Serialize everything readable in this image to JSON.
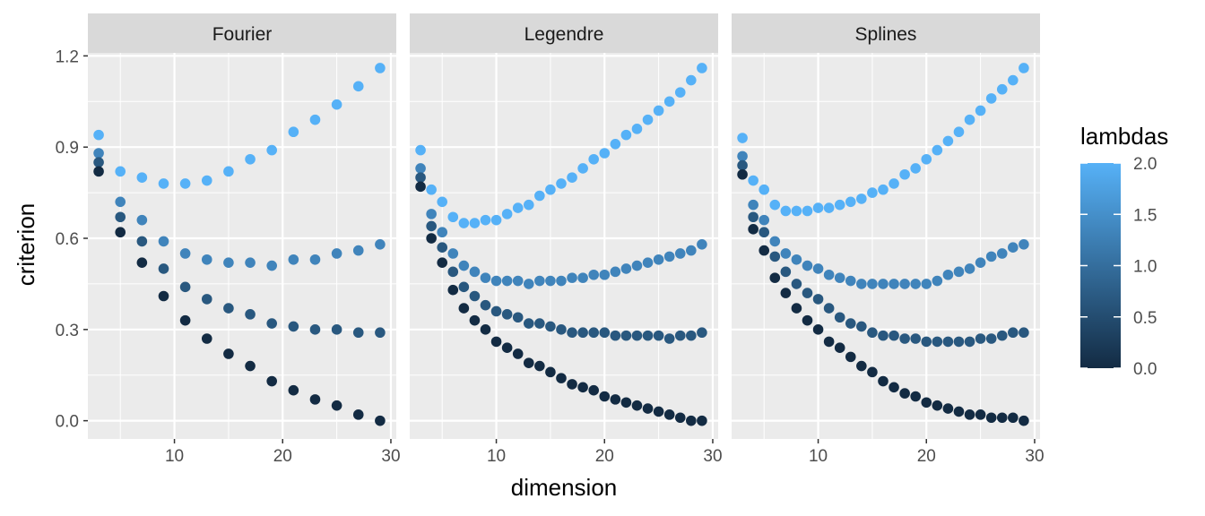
{
  "chart_data": {
    "type": "scatter",
    "facets": [
      "Fourier",
      "Legendre",
      "Splines"
    ],
    "xlabel": "dimension",
    "ylabel": "criterion",
    "xlim": [
      2,
      30.5
    ],
    "ylim": [
      -0.06,
      1.21
    ],
    "x_ticks": [
      10,
      20,
      30
    ],
    "y_ticks": [
      0.0,
      0.3,
      0.6,
      0.9,
      1.2
    ],
    "y_tick_labels": [
      "0.0",
      "0.3",
      "0.6",
      "0.9",
      "1.2"
    ],
    "grid": true,
    "color": {
      "title": "lambdas",
      "low_color": "#132B43",
      "high_color": "#56B1F7",
      "range": [
        0,
        2
      ],
      "ticks": [
        0.0,
        0.5,
        1.0,
        1.5,
        2.0
      ],
      "tick_labels": [
        "0.0",
        "0.5",
        "1.0",
        "1.5",
        "2.0"
      ],
      "legend_position": "right"
    },
    "panels": [
      {
        "facet": "Fourier",
        "series": [
          {
            "lambda": 2.0,
            "x": [
              3,
              5,
              7,
              9,
              11,
              13,
              15,
              17,
              19,
              21,
              23,
              25,
              27,
              29
            ],
            "y": [
              0.94,
              0.82,
              0.8,
              0.78,
              0.78,
              0.79,
              0.82,
              0.86,
              0.89,
              0.95,
              0.99,
              1.04,
              1.1,
              1.16
            ]
          },
          {
            "lambda": 1.33,
            "x": [
              3,
              5,
              7,
              9,
              11,
              13,
              15,
              17,
              19,
              21,
              23,
              25,
              27,
              29
            ],
            "y": [
              0.88,
              0.72,
              0.66,
              0.59,
              0.55,
              0.53,
              0.52,
              0.52,
              0.51,
              0.53,
              0.53,
              0.55,
              0.56,
              0.58
            ]
          },
          {
            "lambda": 0.67,
            "x": [
              3,
              5,
              7,
              9,
              11,
              13,
              15,
              17,
              19,
              21,
              23,
              25,
              27,
              29
            ],
            "y": [
              0.85,
              0.67,
              0.59,
              0.5,
              0.44,
              0.4,
              0.37,
              0.35,
              0.32,
              0.31,
              0.3,
              0.3,
              0.29,
              0.29
            ]
          },
          {
            "lambda": 0.0,
            "x": [
              3,
              5,
              7,
              9,
              11,
              13,
              15,
              17,
              19,
              21,
              23,
              25,
              27,
              29
            ],
            "y": [
              0.82,
              0.62,
              0.52,
              0.41,
              0.33,
              0.27,
              0.22,
              0.18,
              0.13,
              0.1,
              0.07,
              0.05,
              0.02,
              0.0
            ]
          }
        ]
      },
      {
        "facet": "Legendre",
        "series": [
          {
            "lambda": 2.0,
            "x": [
              3,
              4,
              5,
              6,
              7,
              8,
              9,
              10,
              11,
              12,
              13,
              14,
              15,
              16,
              17,
              18,
              19,
              20,
              21,
              22,
              23,
              24,
              25,
              26,
              27,
              28,
              29
            ],
            "y": [
              0.89,
              0.76,
              0.72,
              0.67,
              0.65,
              0.65,
              0.66,
              0.66,
              0.68,
              0.7,
              0.71,
              0.74,
              0.76,
              0.78,
              0.8,
              0.83,
              0.86,
              0.88,
              0.91,
              0.94,
              0.96,
              0.99,
              1.02,
              1.05,
              1.08,
              1.12,
              1.16
            ]
          },
          {
            "lambda": 1.33,
            "x": [
              3,
              4,
              5,
              6,
              7,
              8,
              9,
              10,
              11,
              12,
              13,
              14,
              15,
              16,
              17,
              18,
              19,
              20,
              21,
              22,
              23,
              24,
              25,
              26,
              27,
              28,
              29
            ],
            "y": [
              0.83,
              0.68,
              0.62,
              0.55,
              0.51,
              0.49,
              0.47,
              0.46,
              0.46,
              0.46,
              0.45,
              0.46,
              0.46,
              0.46,
              0.47,
              0.47,
              0.48,
              0.48,
              0.49,
              0.5,
              0.51,
              0.52,
              0.53,
              0.54,
              0.55,
              0.56,
              0.58
            ]
          },
          {
            "lambda": 0.67,
            "x": [
              3,
              4,
              5,
              6,
              7,
              8,
              9,
              10,
              11,
              12,
              13,
              14,
              15,
              16,
              17,
              18,
              19,
              20,
              21,
              22,
              23,
              24,
              25,
              26,
              27,
              28,
              29
            ],
            "y": [
              0.8,
              0.64,
              0.57,
              0.49,
              0.44,
              0.41,
              0.38,
              0.36,
              0.35,
              0.34,
              0.32,
              0.32,
              0.31,
              0.3,
              0.29,
              0.29,
              0.29,
              0.29,
              0.28,
              0.28,
              0.28,
              0.28,
              0.28,
              0.27,
              0.28,
              0.28,
              0.29
            ]
          },
          {
            "lambda": 0.0,
            "x": [
              3,
              4,
              5,
              6,
              7,
              8,
              9,
              10,
              11,
              12,
              13,
              14,
              15,
              16,
              17,
              18,
              19,
              20,
              21,
              22,
              23,
              24,
              25,
              26,
              27,
              28,
              29
            ],
            "y": [
              0.77,
              0.6,
              0.52,
              0.43,
              0.37,
              0.33,
              0.3,
              0.26,
              0.24,
              0.22,
              0.19,
              0.18,
              0.16,
              0.14,
              0.12,
              0.11,
              0.1,
              0.08,
              0.07,
              0.06,
              0.05,
              0.04,
              0.03,
              0.02,
              0.01,
              0.0,
              0.0
            ]
          }
        ]
      },
      {
        "facet": "Splines",
        "series": [
          {
            "lambda": 2.0,
            "x": [
              3,
              4,
              5,
              6,
              7,
              8,
              9,
              10,
              11,
              12,
              13,
              14,
              15,
              16,
              17,
              18,
              19,
              20,
              21,
              22,
              23,
              24,
              25,
              26,
              27,
              28,
              29
            ],
            "y": [
              0.93,
              0.79,
              0.76,
              0.71,
              0.69,
              0.69,
              0.69,
              0.7,
              0.7,
              0.71,
              0.72,
              0.73,
              0.75,
              0.76,
              0.78,
              0.81,
              0.83,
              0.86,
              0.89,
              0.92,
              0.95,
              0.99,
              1.02,
              1.06,
              1.09,
              1.12,
              1.16
            ]
          },
          {
            "lambda": 1.33,
            "x": [
              3,
              4,
              5,
              6,
              7,
              8,
              9,
              10,
              11,
              12,
              13,
              14,
              15,
              16,
              17,
              18,
              19,
              20,
              21,
              22,
              23,
              24,
              25,
              26,
              27,
              28,
              29
            ],
            "y": [
              0.87,
              0.71,
              0.66,
              0.59,
              0.55,
              0.53,
              0.51,
              0.5,
              0.48,
              0.47,
              0.46,
              0.45,
              0.45,
              0.45,
              0.45,
              0.45,
              0.45,
              0.45,
              0.46,
              0.48,
              0.49,
              0.5,
              0.52,
              0.54,
              0.55,
              0.57,
              0.58
            ]
          },
          {
            "lambda": 0.67,
            "x": [
              3,
              4,
              5,
              6,
              7,
              8,
              9,
              10,
              11,
              12,
              13,
              14,
              15,
              16,
              17,
              18,
              19,
              20,
              21,
              22,
              23,
              24,
              25,
              26,
              27,
              28,
              29
            ],
            "y": [
              0.84,
              0.67,
              0.62,
              0.54,
              0.49,
              0.45,
              0.42,
              0.4,
              0.37,
              0.34,
              0.32,
              0.31,
              0.29,
              0.28,
              0.28,
              0.27,
              0.27,
              0.26,
              0.26,
              0.26,
              0.26,
              0.26,
              0.27,
              0.27,
              0.28,
              0.29,
              0.29
            ]
          },
          {
            "lambda": 0.0,
            "x": [
              3,
              4,
              5,
              6,
              7,
              8,
              9,
              10,
              11,
              12,
              13,
              14,
              15,
              16,
              17,
              18,
              19,
              20,
              21,
              22,
              23,
              24,
              25,
              26,
              27,
              28,
              29
            ],
            "y": [
              0.81,
              0.63,
              0.56,
              0.47,
              0.42,
              0.37,
              0.33,
              0.3,
              0.26,
              0.24,
              0.21,
              0.18,
              0.16,
              0.13,
              0.11,
              0.09,
              0.08,
              0.06,
              0.05,
              0.04,
              0.03,
              0.02,
              0.02,
              0.01,
              0.01,
              0.01,
              0.0
            ]
          }
        ]
      }
    ]
  }
}
